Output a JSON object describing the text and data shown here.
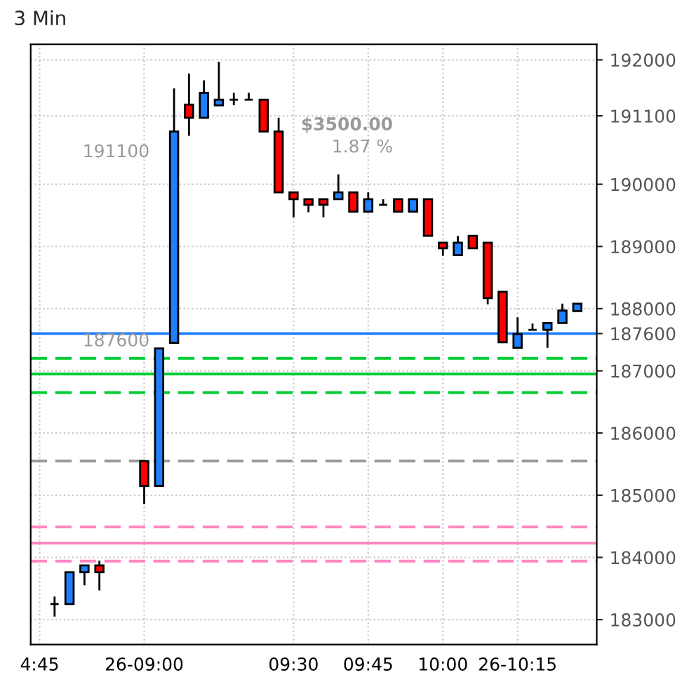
{
  "chart_data": {
    "type": "candlestick",
    "title": "3 Min",
    "categories": [
      "4:45",
      null,
      null,
      null,
      null,
      null,
      null,
      "26-09:00",
      null,
      null,
      null,
      null,
      null,
      null,
      null,
      null,
      null,
      "09:30",
      null,
      null,
      null,
      null,
      "09:45",
      null,
      null,
      null,
      null,
      "10:00",
      null,
      null,
      null,
      null,
      "26-10:15",
      null,
      null,
      null,
      null
    ],
    "ohlc": [
      null,
      [
        183250,
        183370,
        183050,
        183250
      ],
      [
        183250,
        183760,
        183250,
        183760
      ],
      [
        183760,
        183870,
        183550,
        183870
      ],
      [
        183870,
        183950,
        183470,
        183760
      ],
      null,
      null,
      [
        185550,
        185550,
        184860,
        185150
      ],
      [
        185150,
        187360,
        185150,
        187360
      ],
      [
        187450,
        191540,
        187450,
        190850
      ],
      [
        191280,
        191780,
        190780,
        191070
      ],
      [
        191070,
        191670,
        191070,
        191470
      ],
      [
        191270,
        191970,
        191270,
        191360
      ],
      [
        191360,
        191470,
        191270,
        191360
      ],
      [
        191360,
        191470,
        191360,
        191360
      ],
      [
        191360,
        191360,
        190850,
        190850
      ],
      [
        190850,
        191070,
        189870,
        189870
      ],
      [
        189870,
        189870,
        189470,
        189760
      ],
      [
        189760,
        189760,
        189550,
        189670
      ],
      [
        189760,
        189760,
        189470,
        189670
      ],
      [
        189760,
        190160,
        189760,
        189870
      ],
      [
        189870,
        189870,
        189560,
        189560
      ],
      [
        189560,
        189870,
        189560,
        189760
      ],
      [
        189670,
        189760,
        189670,
        189670
      ],
      [
        189760,
        189760,
        189560,
        189560
      ],
      [
        189560,
        189760,
        189560,
        189760
      ],
      [
        189760,
        189760,
        189170,
        189170
      ],
      [
        189060,
        189060,
        188850,
        188970
      ],
      [
        188860,
        189170,
        188860,
        189060
      ],
      [
        189170,
        189170,
        188970,
        188970
      ],
      [
        189060,
        189060,
        188070,
        188170
      ],
      [
        188270,
        188270,
        187460,
        187460
      ],
      [
        187370,
        187860,
        187370,
        187590
      ],
      [
        187660,
        187760,
        187660,
        187660
      ],
      [
        187660,
        187770,
        187370,
        187770
      ],
      [
        187770,
        188080,
        187770,
        187970
      ],
      [
        187960,
        188080,
        187960,
        188080
      ]
    ],
    "colors": [
      null,
      "#000000",
      "#1e7fff",
      "#1e7fff",
      "#ff0000",
      null,
      null,
      "#ff0000",
      "#1e7fff",
      "#1e7fff",
      "#ff0000",
      "#1e7fff",
      "#1e7fff",
      "#000000",
      "#000000",
      "#ff0000",
      "#ff0000",
      "#ff0000",
      "#ff0000",
      "#ff0000",
      "#1e7fff",
      "#ff0000",
      "#1e7fff",
      "#000000",
      "#ff0000",
      "#1e7fff",
      "#ff0000",
      "#ff0000",
      "#1e7fff",
      "#ff0000",
      "#ff0000",
      "#ff0000",
      "#1e7fff",
      "#000000",
      "#1e7fff",
      "#1e7fff",
      "#1e7fff"
    ],
    "ylim": [
      182600,
      192250
    ],
    "yticks": [
      183000,
      184000,
      185000,
      186000,
      187000,
      187600,
      188000,
      189000,
      190000,
      191100,
      192000
    ],
    "grid": true,
    "ref_lines": [
      {
        "axis": "y",
        "value": 187600,
        "color": "#1e7fff",
        "line_style": "solid"
      },
      {
        "axis": "y",
        "value": 187200,
        "color": "#00cc33",
        "line_style": "dashed"
      },
      {
        "axis": "y",
        "value": 186950,
        "color": "#00cc33",
        "line_style": "solid"
      },
      {
        "axis": "y",
        "value": 186650,
        "color": "#00cc33",
        "line_style": "dashed"
      },
      {
        "axis": "y",
        "value": 185550,
        "color": "#999999",
        "line_style": "dashed"
      },
      {
        "axis": "y",
        "value": 184490,
        "color": "#ff88c0",
        "line_style": "dashed"
      },
      {
        "axis": "y",
        "value": 184230,
        "color": "#ff88c0",
        "line_style": "solid"
      },
      {
        "axis": "y",
        "value": 183940,
        "color": "#ff88c0",
        "line_style": "dashed"
      }
    ],
    "annotations": [
      "$3500.00",
      "1.87 %",
      "191100",
      "187600"
    ]
  }
}
